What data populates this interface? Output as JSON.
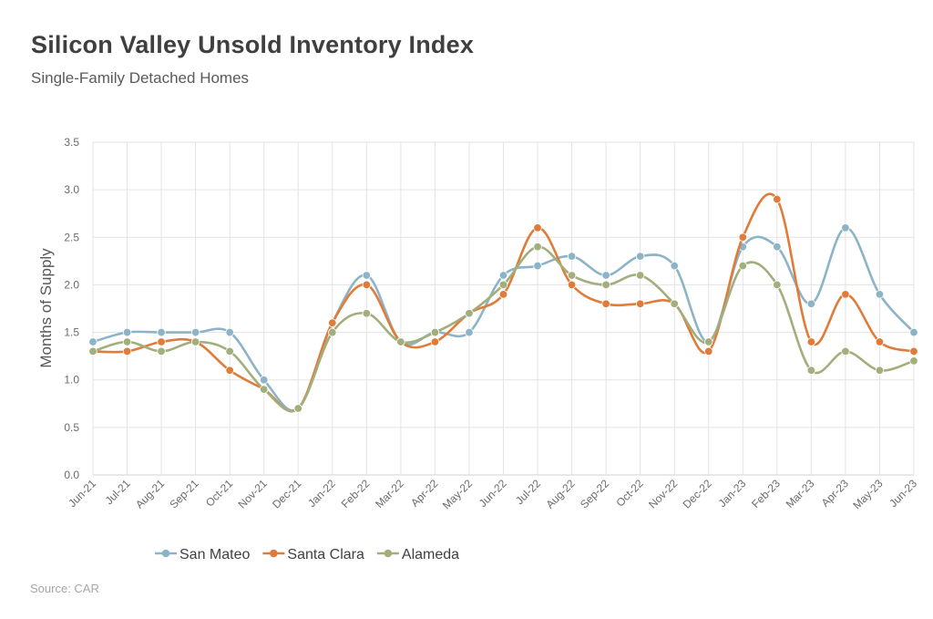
{
  "header": {
    "title": "Silicon Valley Unsold Inventory Index",
    "subtitle": "Single-Family Detached Homes"
  },
  "footer": {
    "source": "Source: CAR"
  },
  "chart_data": {
    "type": "line",
    "title": "Silicon Valley Unsold Inventory Index",
    "subtitle": "Single-Family Detached Homes",
    "xlabel": "",
    "ylabel": "Months of Supply",
    "ylim": [
      0,
      3.5
    ],
    "yticks": [
      "0.0",
      "0.5",
      "1.0",
      "1.5",
      "2.0",
      "2.5",
      "3.0",
      "3.5"
    ],
    "grid": true,
    "legend_position": "bottom-left",
    "categories": [
      "Jun-21",
      "Jul-21",
      "Aug-21",
      "Sep-21",
      "Oct-21",
      "Nov-21",
      "Dec-21",
      "Jan-22",
      "Feb-22",
      "Mar-22",
      "Apr-22",
      "May-22",
      "Jun-22",
      "Jul-22",
      "Aug-22",
      "Sep-22",
      "Oct-22",
      "Nov-22",
      "Dec-22",
      "Jan-23",
      "Feb-23",
      "Mar-23",
      "Apr-23",
      "May-23",
      "Jun-23"
    ],
    "series": [
      {
        "name": "San Mateo",
        "color": "#8db3c7",
        "values": [
          1.4,
          1.5,
          1.5,
          1.5,
          1.5,
          1.0,
          0.7,
          1.6,
          2.1,
          1.4,
          1.5,
          1.5,
          2.1,
          2.2,
          2.3,
          2.1,
          2.3,
          2.2,
          1.4,
          2.4,
          2.4,
          1.8,
          2.6,
          1.9,
          1.5
        ]
      },
      {
        "name": "Santa Clara",
        "color": "#e07b39",
        "values": [
          1.3,
          1.3,
          1.4,
          1.4,
          1.1,
          0.9,
          0.7,
          1.6,
          2.0,
          1.4,
          1.4,
          1.7,
          1.9,
          2.6,
          2.0,
          1.8,
          1.8,
          1.8,
          1.3,
          2.5,
          2.9,
          1.4,
          1.9,
          1.4,
          1.3
        ]
      },
      {
        "name": "Alameda",
        "color": "#a2ae7c",
        "values": [
          1.3,
          1.4,
          1.3,
          1.4,
          1.3,
          0.9,
          0.7,
          1.5,
          1.7,
          1.4,
          1.5,
          1.7,
          2.0,
          2.4,
          2.1,
          2.0,
          2.1,
          1.8,
          1.4,
          2.2,
          2.0,
          1.1,
          1.3,
          1.1,
          1.2
        ]
      }
    ]
  }
}
